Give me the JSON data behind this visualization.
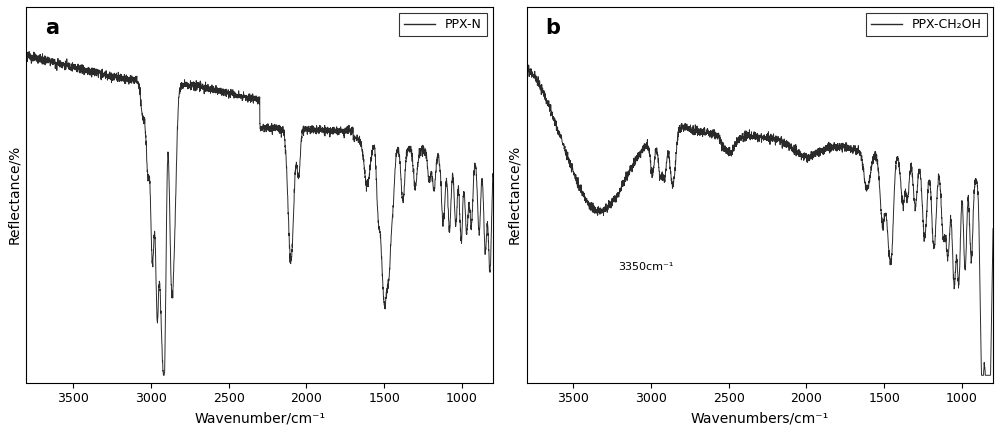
{
  "panel_a": {
    "label": "a",
    "legend_label": "PPX-N",
    "xlabel": "Wavenumber/cm⁻¹",
    "ylabel": "Reflectance/%",
    "xlim": [
      3800,
      800
    ],
    "ylim": [
      0,
      1.0
    ],
    "xticks": [
      3500,
      3000,
      2500,
      2000,
      1500,
      1000
    ],
    "line_color": "#2a2a2a",
    "background": "#ffffff"
  },
  "panel_b": {
    "label": "b",
    "legend_label": "PPX-CH₂OH",
    "xlabel": "Wavenumbers/cm⁻¹",
    "ylabel": "Reflectance/%",
    "xlim": [
      3800,
      800
    ],
    "ylim": [
      0,
      1.0
    ],
    "xticks": [
      3500,
      3000,
      2500,
      2000,
      1500,
      1000
    ],
    "annotation": "3350cm⁻¹",
    "line_color": "#2a2a2a",
    "background": "#ffffff"
  }
}
